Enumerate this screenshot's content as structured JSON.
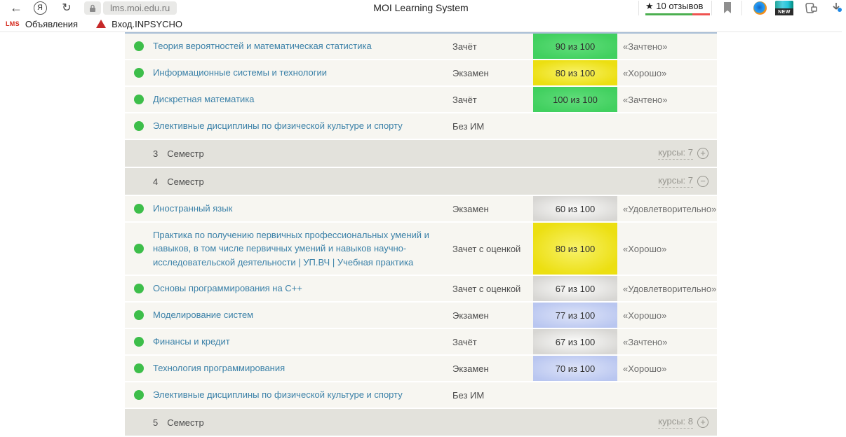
{
  "browser": {
    "url": "lms.moi.edu.ru",
    "page_title": "MOI Learning System",
    "reviews": {
      "star": "★",
      "label": "10 отзывов",
      "positive_pct": 73
    },
    "toolbar": {
      "new_badge": "NEW"
    },
    "bookmarks": [
      {
        "favicon_text": "LMS",
        "label": "Объявления"
      },
      {
        "label": "Вход.INPSYCHO"
      }
    ]
  },
  "icons": {
    "back": "←",
    "refresh": "↻",
    "plus": "+",
    "minus": "−",
    "yandex_letter": "Я"
  },
  "colors": {
    "score_green": "#41d05f",
    "score_yellow": "#ecdf11",
    "score_gray": "#d7d6d3",
    "score_blue": "#b9c6f0",
    "course_link": "#3b81a8",
    "status_dot": "#3dbe4a",
    "rating_positive": "#4caf50",
    "rating_negative": "#ef5350",
    "semester_header_bg": "#e3e2dc",
    "row_bg": "#f7f6f1"
  },
  "table": {
    "items": [
      {
        "type": "course",
        "name": "Теория вероятностей и математическая статистика",
        "exam": "Зачёт",
        "score": "90 из 100",
        "score_color": "green",
        "grade": "«Зачтено»"
      },
      {
        "type": "course",
        "name": "Информационные системы и технологии",
        "exam": "Экзамен",
        "score": "80 из 100",
        "score_color": "yellow",
        "grade": "«Хорошо»"
      },
      {
        "type": "course",
        "name": "Дискретная математика",
        "exam": "Зачёт",
        "score": "100 из 100",
        "score_color": "green",
        "grade": "«Зачтено»"
      },
      {
        "type": "course",
        "name": "Элективные дисциплины по физической культуре и спорту",
        "exam": "Без ИМ",
        "score": null,
        "score_color": null,
        "grade": null
      },
      {
        "type": "semester",
        "num": "3",
        "label": "Семестр",
        "courses_label": "курсы: 7",
        "toggle": "plus"
      },
      {
        "type": "semester",
        "num": "4",
        "label": "Семестр",
        "courses_label": "курсы: 7",
        "toggle": "minus"
      },
      {
        "type": "course",
        "name": "Иностранный язык",
        "exam": "Экзамен",
        "score": "60 из 100",
        "score_color": "gray",
        "grade": "«Удовлетворительно»"
      },
      {
        "type": "course",
        "name": "Практика по получению первичных профессиональных умений и навыков, в том числе первичных умений и навыков научно-исследовательской деятельности | УП.ВЧ | Учебная практика",
        "exam": "Зачет с оценкой",
        "score": "80 из 100",
        "score_color": "yellow",
        "grade": "«Хорошо»",
        "tall": true
      },
      {
        "type": "course",
        "name": "Основы программирования на C++",
        "exam": "Зачет с оценкой",
        "score": "67 из 100",
        "score_color": "gray",
        "grade": "«Удовлетворительно»"
      },
      {
        "type": "course",
        "name": "Моделирование систем",
        "exam": "Экзамен",
        "score": "77 из 100",
        "score_color": "blue",
        "grade": "«Хорошо»"
      },
      {
        "type": "course",
        "name": "Финансы и кредит",
        "exam": "Зачёт",
        "score": "67 из 100",
        "score_color": "gray",
        "grade": "«Зачтено»"
      },
      {
        "type": "course",
        "name": "Технология программирования",
        "exam": "Экзамен",
        "score": "70 из 100",
        "score_color": "blue",
        "grade": "«Хорошо»"
      },
      {
        "type": "course",
        "name": "Элективные дисциплины по физической культуре и спорту",
        "exam": "Без ИМ",
        "score": null,
        "score_color": null,
        "grade": null
      },
      {
        "type": "semester",
        "num": "5",
        "label": "Семестр",
        "courses_label": "курсы: 8",
        "toggle": "plus"
      }
    ]
  }
}
